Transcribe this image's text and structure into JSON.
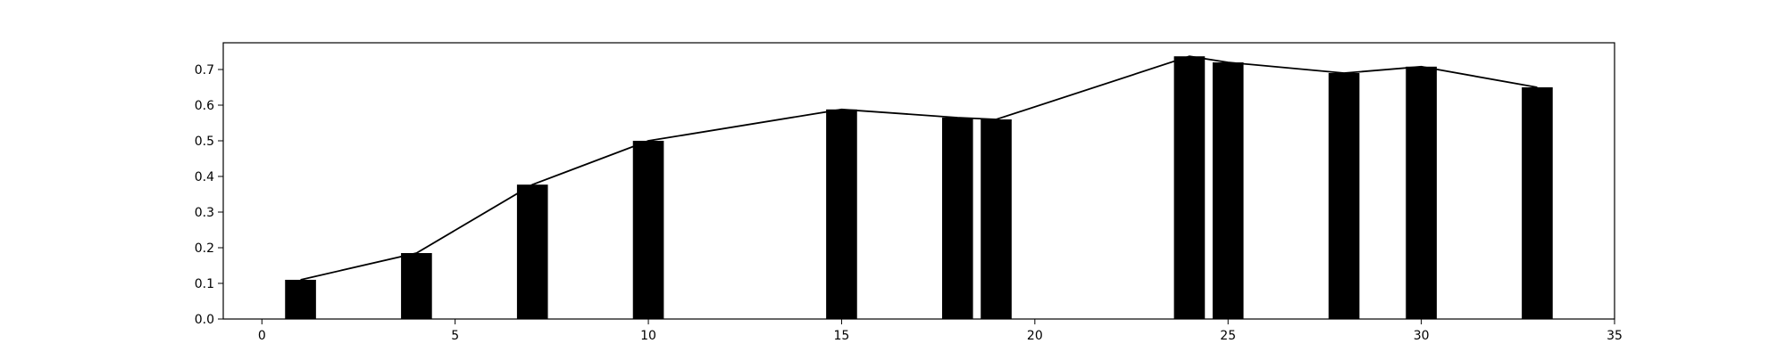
{
  "chart_data": {
    "type": "bar",
    "title": "",
    "xlabel": "",
    "ylabel": "",
    "x": [
      1,
      4,
      7,
      10,
      15,
      18,
      19,
      24,
      25,
      28,
      30,
      33
    ],
    "values": [
      0.11,
      0.185,
      0.377,
      0.5,
      0.588,
      0.565,
      0.56,
      0.737,
      0.72,
      0.69,
      0.708,
      0.65
    ],
    "bar_width": 0.8,
    "overlay_line": true,
    "xlim": [
      -1,
      35
    ],
    "ylim": [
      0,
      0.775
    ],
    "xticks": [
      0,
      5,
      10,
      15,
      20,
      25,
      30,
      35
    ],
    "yticks": [
      0.0,
      0.1,
      0.2,
      0.3,
      0.4,
      0.5,
      0.6,
      0.7
    ],
    "xtick_labels": [
      "0",
      "5",
      "10",
      "15",
      "20",
      "25",
      "30",
      "35"
    ],
    "ytick_labels": [
      "0.0",
      "0.1",
      "0.2",
      "0.3",
      "0.4",
      "0.5",
      "0.6",
      "0.7"
    ],
    "grid": false,
    "legend": "none",
    "bar_color": "#000000",
    "line_color": "#000000"
  }
}
